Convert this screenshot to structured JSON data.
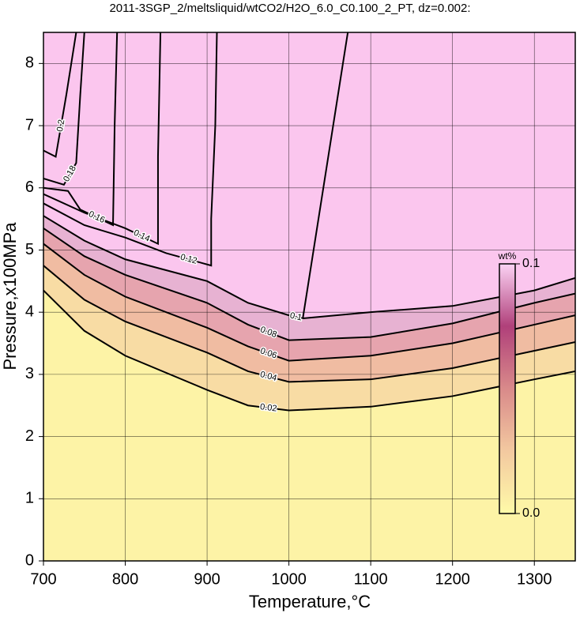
{
  "chart_data": {
    "type": "contour",
    "title": "2011-3SGP_2/meltsliquid/wtCO2/H2O_6.0_C0.100_2_PT, dz=0.002:",
    "x_label": "Temperature,°C",
    "y_label": "Pressure,x100MPa",
    "xlim": [
      700,
      1350
    ],
    "ylim": [
      0,
      8.5
    ],
    "xticks": [
      700,
      800,
      900,
      1000,
      1100,
      1200,
      1300
    ],
    "yticks": [
      0,
      1,
      2,
      3,
      4,
      5,
      6,
      7,
      8
    ],
    "grid": true,
    "background": "#fbc6ee",
    "line_color": "#000000",
    "series": [
      {
        "level": 0.02,
        "fill": "#fdf3a6",
        "x": [
          700,
          750,
          800,
          900,
          950,
          1000,
          1100,
          1200,
          1300,
          1350
        ],
        "y": [
          4.35,
          3.7,
          3.3,
          2.75,
          2.5,
          2.42,
          2.48,
          2.65,
          2.92,
          3.05
        ]
      },
      {
        "level": 0.04,
        "fill": "#f8dca4",
        "x": [
          700,
          750,
          800,
          900,
          950,
          1000,
          1100,
          1200,
          1300,
          1350
        ],
        "y": [
          4.75,
          4.2,
          3.85,
          3.35,
          3.05,
          2.88,
          2.92,
          3.1,
          3.38,
          3.52
        ]
      },
      {
        "level": 0.06,
        "fill": "#f0bca2",
        "x": [
          700,
          750,
          800,
          900,
          950,
          1000,
          1100,
          1200,
          1300,
          1350
        ],
        "y": [
          5.1,
          4.6,
          4.25,
          3.75,
          3.45,
          3.22,
          3.3,
          3.5,
          3.8,
          3.95
        ]
      },
      {
        "level": 0.08,
        "fill": "#e6a4ae",
        "x": [
          700,
          750,
          800,
          900,
          950,
          1000,
          1100,
          1200,
          1300,
          1350
        ],
        "y": [
          5.35,
          4.9,
          4.6,
          4.15,
          3.8,
          3.55,
          3.6,
          3.82,
          4.15,
          4.3
        ]
      },
      {
        "level": 0.1,
        "fill": "#e7b2d2",
        "x": [
          700,
          750,
          800,
          900,
          950,
          1000,
          1017,
          1100,
          1200,
          1300,
          1350,
          null,
          1017,
          1072
        ],
        "y": [
          5.55,
          5.15,
          4.85,
          4.5,
          4.15,
          3.95,
          3.9,
          4.0,
          4.1,
          4.35,
          4.55,
          null,
          3.9,
          8.5
        ]
      },
      {
        "level": 0.12,
        "x": [
          700,
          750,
          800,
          850,
          905,
          905,
          910,
          912
        ],
        "y": [
          5.75,
          5.4,
          5.2,
          4.95,
          4.75,
          5.5,
          7,
          8.5
        ]
      },
      {
        "level": 0.14,
        "x": [
          700,
          750,
          800,
          840,
          840,
          843
        ],
        "y": [
          5.9,
          5.6,
          5.35,
          5.1,
          6.5,
          8.5
        ]
      },
      {
        "level": 0.16,
        "x": [
          700,
          730,
          745,
          785,
          787,
          790
        ],
        "y": [
          6.0,
          5.95,
          5.65,
          5.4,
          7,
          8.5
        ]
      },
      {
        "level": 0.18,
        "x": [
          700,
          725,
          740,
          745,
          750
        ],
        "y": [
          6.15,
          6.05,
          6.4,
          7.5,
          8.5
        ]
      },
      {
        "level": 0.2,
        "x": [
          700,
          715,
          728,
          740
        ],
        "y": [
          6.6,
          6.5,
          7.5,
          8.5
        ]
      }
    ],
    "colorbar": {
      "label": "wt%",
      "lim": [
        0,
        0.1
      ],
      "ticks": [
        {
          "value": 0,
          "label": "0.0"
        },
        0.1
      ],
      "colors": [
        "#fffaa8",
        "#f3c9a0",
        "#d98a8a",
        "#b0407a",
        "#fbd2f4"
      ]
    }
  }
}
